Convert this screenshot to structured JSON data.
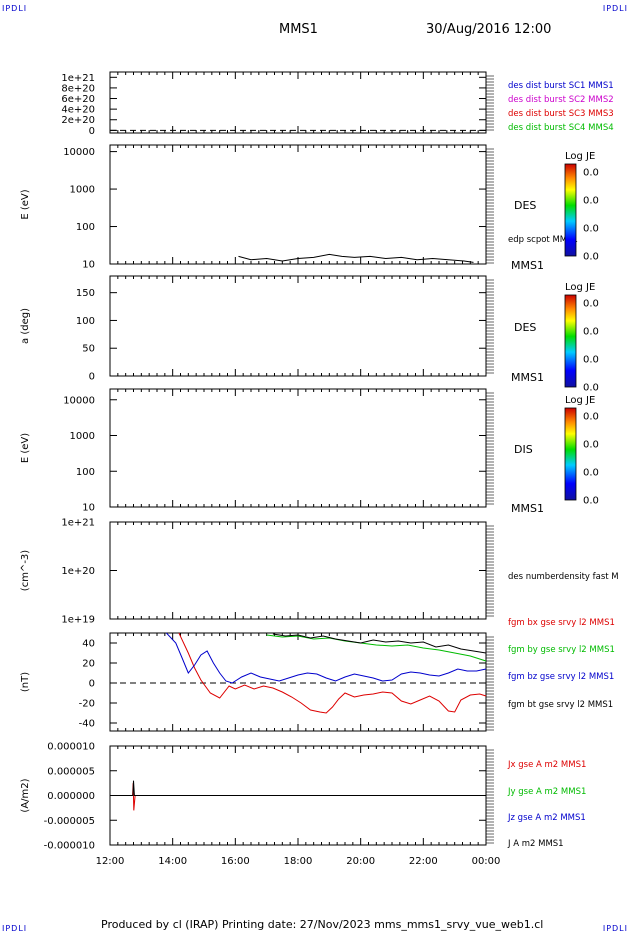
{
  "corners": {
    "top_left": "IPDLI",
    "top_right": "IPDLI",
    "bottom_left": "IPDLI",
    "bottom_right": "IPDLI"
  },
  "header": {
    "spacecraft": "MMS1",
    "datetime": "30/Aug/2016 12:00"
  },
  "footer": {
    "text": "Produced by cl (IRAP)   Printing date: 27/Nov/2023   mms_mms1_srvy_vue_web1.cl"
  },
  "time_axis": {
    "ticks": [
      "12:00",
      "14:00",
      "16:00",
      "18:00",
      "20:00",
      "22:00",
      "00:00"
    ],
    "range_hours": [
      12,
      24
    ]
  },
  "colors": {
    "black": "#000000",
    "blue": "#0000cc",
    "magenta": "#cc00cc",
    "red": "#dd0000",
    "green": "#00bb00"
  },
  "chart_data": [
    {
      "type": "line",
      "ylabel": "",
      "ylim": [
        -5e+19,
        1.1e+21
      ],
      "yticks": [
        "1e+21",
        "8e+20",
        "6e+20",
        "4e+20",
        "2e+20",
        "0"
      ],
      "ytick_values": [
        1e+21,
        8e+20,
        6e+20,
        4e+20,
        2e+20,
        0
      ],
      "zero_line": true,
      "legend": [
        {
          "name": "des dist burst SC1 MMS1",
          "color": "#0000cc"
        },
        {
          "name": "des dist burst SC2 MMS2",
          "color": "#cc00cc"
        },
        {
          "name": "des dist burst SC3 MMS3",
          "color": "#dd0000"
        },
        {
          "name": "des dist burst SC4 MMS4",
          "color": "#00bb00"
        }
      ]
    },
    {
      "type": "line",
      "scale": "log",
      "ylabel": "E (eV)",
      "ylim": [
        10,
        15000
      ],
      "yticks": [
        "10000",
        "1000",
        "100",
        "10"
      ],
      "ytick_values": [
        10000,
        1000,
        100,
        10
      ],
      "side_label": "DES",
      "sub_label": "edp scpot MMS1",
      "instrument": "MMS1",
      "colorbar": {
        "title": "Log JE",
        "ticks": [
          "0.0",
          "0.0",
          "0.0",
          "0.0"
        ]
      },
      "series": [
        {
          "name": "edp scpot MMS1",
          "color": "#000000",
          "x": [
            16.1,
            16.5,
            17.0,
            17.5,
            18.0,
            18.5,
            19.0,
            19.4,
            19.8,
            20.3,
            20.8,
            21.3,
            21.8,
            22.3,
            22.8,
            23.3,
            23.6
          ],
          "y": [
            16,
            13,
            14,
            12,
            14,
            15,
            18,
            16,
            15,
            16,
            14,
            15,
            13,
            14,
            13,
            12,
            11
          ]
        }
      ]
    },
    {
      "type": "heatmap",
      "ylabel": "a (deg)",
      "ylim": [
        0,
        180
      ],
      "yticks": [
        "150",
        "100",
        "50",
        "0"
      ],
      "ytick_values": [
        150,
        100,
        50,
        0
      ],
      "side_label": "DES",
      "instrument": "MMS1",
      "colorbar": {
        "title": "Log JE",
        "ticks": [
          "0.0",
          "0.0",
          "0.0",
          "0.0"
        ]
      }
    },
    {
      "type": "heatmap",
      "scale": "log",
      "ylabel": "E (eV)",
      "ylim": [
        10,
        20000
      ],
      "yticks": [
        "10000",
        "1000",
        "100",
        "10"
      ],
      "ytick_values": [
        10000,
        1000,
        100,
        10
      ],
      "side_label": "DIS",
      "instrument": "MMS1",
      "colorbar": {
        "title": "Log JE",
        "ticks": [
          "0.0",
          "0.0",
          "0.0",
          "0.0"
        ]
      }
    },
    {
      "type": "line",
      "scale": "log",
      "ylabel": "(cm^-3)",
      "ylim": [
        1e+19,
        1e+21
      ],
      "yticks": [
        "1e+21",
        "1e+20",
        "1e+19"
      ],
      "ytick_values": [
        1e+21,
        1e+20,
        1e+19
      ],
      "legend": [
        {
          "name": "des numberdensity fast M",
          "color": "#000000"
        }
      ]
    },
    {
      "type": "line",
      "ylabel": "(nT)",
      "ylim": [
        -48,
        50
      ],
      "yticks": [
        "40",
        "20",
        "0",
        "-20",
        "-40"
      ],
      "ytick_values": [
        40,
        20,
        0,
        -20,
        -40
      ],
      "zero_line": true,
      "legend": [
        {
          "name": "fgm bx gse srvy l2 MMS1",
          "color": "#dd0000"
        },
        {
          "name": "fgm by gse srvy l2 MMS1",
          "color": "#00bb00"
        },
        {
          "name": "fgm bz gse srvy l2 MMS1",
          "color": "#0000cc"
        },
        {
          "name": "fgm bt gse srvy l2 MMS1",
          "color": "#000000"
        }
      ],
      "series": [
        {
          "name": "fgm bx gse srvy l2 MMS1",
          "color": "#dd0000",
          "x": [
            14.2,
            14.5,
            14.7,
            14.9,
            15.2,
            15.5,
            15.8,
            16.0,
            16.3,
            16.6,
            16.9,
            17.2,
            17.5,
            17.8,
            18.1,
            18.4,
            18.7,
            18.9,
            19.1,
            19.3,
            19.5,
            19.8,
            20.1,
            20.4,
            20.7,
            21.0,
            21.3,
            21.6,
            21.9,
            22.2,
            22.5,
            22.8,
            23.0,
            23.2,
            23.5,
            23.8,
            24.0
          ],
          "y": [
            50,
            30,
            15,
            3,
            -10,
            -15,
            -3,
            -6,
            -2,
            -6,
            -3,
            -5,
            -9,
            -14,
            -20,
            -27,
            -29,
            -30,
            -24,
            -16,
            -10,
            -14,
            -12,
            -11,
            -9,
            -10,
            -18,
            -21,
            -17,
            -13,
            -18,
            -28,
            -29,
            -17,
            -12,
            -11,
            -13
          ]
        },
        {
          "name": "fgm by gse srvy l2 MMS1",
          "color": "#00bb00",
          "x": [
            17.0,
            17.5,
            18.0,
            18.5,
            19.0,
            19.5,
            20.0,
            20.5,
            21.0,
            21.5,
            22.0,
            22.5,
            23.0,
            23.5,
            24.0
          ],
          "y": [
            48,
            46,
            47,
            44,
            45,
            42,
            40,
            38,
            37,
            38,
            35,
            33,
            30,
            27,
            22
          ]
        },
        {
          "name": "fgm bz gse srvy l2 MMS1",
          "color": "#0000cc",
          "x": [
            13.8,
            14.1,
            14.3,
            14.5,
            14.7,
            14.9,
            15.1,
            15.3,
            15.5,
            15.7,
            15.9,
            16.2,
            16.5,
            16.8,
            17.1,
            17.4,
            17.7,
            18.0,
            18.3,
            18.6,
            18.9,
            19.2,
            19.5,
            19.8,
            20.1,
            20.4,
            20.7,
            21.0,
            21.3,
            21.6,
            21.9,
            22.2,
            22.5,
            22.8,
            23.1,
            23.4,
            23.7,
            24.0
          ],
          "y": [
            50,
            40,
            25,
            10,
            18,
            28,
            32,
            20,
            10,
            2,
            0,
            6,
            10,
            6,
            4,
            2,
            5,
            8,
            10,
            9,
            5,
            2,
            6,
            9,
            7,
            5,
            2,
            3,
            9,
            11,
            10,
            8,
            7,
            10,
            14,
            12,
            12,
            14
          ]
        },
        {
          "name": "fgm bt gse srvy l2 MMS1",
          "color": "#000000",
          "x": [
            17.2,
            17.6,
            18.0,
            18.4,
            18.8,
            19.2,
            19.6,
            20.0,
            20.4,
            20.8,
            21.2,
            21.6,
            22.0,
            22.4,
            22.8,
            23.2,
            23.6,
            24.0
          ],
          "y": [
            49,
            47,
            48,
            45,
            47,
            44,
            42,
            40,
            43,
            41,
            42,
            40,
            41,
            36,
            38,
            34,
            32,
            30
          ]
        }
      ]
    },
    {
      "type": "line",
      "ylabel": "(A/m2)",
      "ylim": [
        -1e-05,
        1e-05
      ],
      "yticks": [
        "0.000010",
        "0.000005",
        "0.000000",
        "-0.000005",
        "-0.000010"
      ],
      "ytick_values": [
        1e-05,
        5e-06,
        0,
        -5e-06,
        -1e-05
      ],
      "zero_line": true,
      "legend": [
        {
          "name": "Jx gse A m2 MMS1",
          "color": "#dd0000"
        },
        {
          "name": "Jy gse A m2 MMS1",
          "color": "#00bb00"
        },
        {
          "name": "Jz gse A m2 MMS1",
          "color": "#0000cc"
        },
        {
          "name": "J A m2 MMS1",
          "color": "#000000"
        }
      ],
      "series": [
        {
          "name": "Jx gse A m2 MMS1",
          "color": "#dd0000",
          "x": [
            12.0,
            12.72,
            12.74,
            12.76,
            12.8,
            24.0
          ],
          "y": [
            0,
            0,
            2.5e-06,
            -3e-06,
            0,
            0
          ]
        },
        {
          "name": "J A m2 MMS1",
          "color": "#000000",
          "x": [
            12.0,
            12.73,
            12.75,
            12.78,
            12.8,
            24.0
          ],
          "y": [
            0,
            0,
            3e-06,
            0,
            0,
            0
          ]
        }
      ]
    }
  ]
}
